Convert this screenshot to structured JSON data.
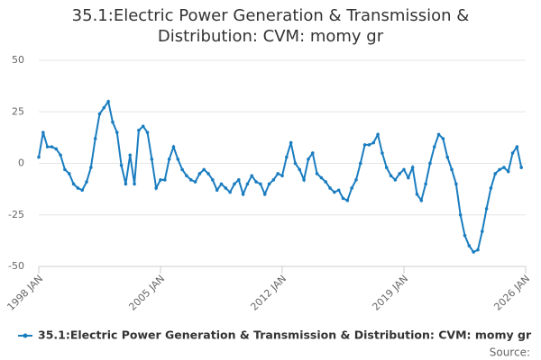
{
  "chart_data": {
    "type": "line",
    "title": "35.1:Electric Power Generation & Transmission & Distribution: CVM: momy gr",
    "source": "Source:",
    "x": [
      "1998 JAN",
      "1998 APR",
      "1998 JUL",
      "1998 OCT",
      "1999 JAN",
      "1999 APR",
      "1999 JUL",
      "1999 OCT",
      "2000 JAN",
      "2000 APR",
      "2000 JUL",
      "2000 OCT",
      "2001 JAN",
      "2001 APR",
      "2001 JUL",
      "2001 OCT",
      "2002 JAN",
      "2002 APR",
      "2002 JUL",
      "2002 OCT",
      "2003 JAN",
      "2003 APR",
      "2003 JUL",
      "2003 OCT",
      "2004 JAN",
      "2004 APR",
      "2004 JUL",
      "2004 OCT",
      "2005 JAN",
      "2005 APR",
      "2005 JUL",
      "2005 OCT",
      "2006 JAN",
      "2006 APR",
      "2006 JUL",
      "2006 OCT",
      "2007 JAN",
      "2007 APR",
      "2007 JUL",
      "2007 OCT",
      "2008 JAN",
      "2008 APR",
      "2008 JUL",
      "2008 OCT",
      "2009 JAN",
      "2009 APR",
      "2009 JUL",
      "2009 OCT",
      "2010 JAN",
      "2010 APR",
      "2010 JUL",
      "2010 OCT",
      "2011 JAN",
      "2011 APR",
      "2011 JUL",
      "2011 OCT",
      "2012 JAN",
      "2012 APR",
      "2012 JUL",
      "2012 OCT",
      "2013 JAN",
      "2013 APR",
      "2013 JUL",
      "2013 OCT",
      "2014 JAN",
      "2014 APR",
      "2014 JUL",
      "2014 OCT",
      "2015 JAN",
      "2015 APR",
      "2015 JUL",
      "2015 OCT",
      "2016 JAN",
      "2016 APR",
      "2016 JUL",
      "2016 OCT",
      "2017 JAN",
      "2017 APR",
      "2017 JUL",
      "2017 OCT",
      "2018 JAN",
      "2018 APR",
      "2018 JUL",
      "2018 OCT",
      "2019 JAN",
      "2019 APR",
      "2019 JUL",
      "2019 OCT",
      "2020 JAN",
      "2020 APR",
      "2020 JUL",
      "2020 OCT",
      "2021 JAN",
      "2021 APR",
      "2021 JUL",
      "2021 OCT",
      "2022 JAN",
      "2022 APR",
      "2022 JUL",
      "2022 OCT",
      "2023 JAN",
      "2023 APR",
      "2023 JUL",
      "2023 OCT",
      "2024 JAN",
      "2024 APR",
      "2024 JUL",
      "2024 OCT",
      "2025 JAN",
      "2025 APR",
      "2025 JUL",
      "2025 OCT"
    ],
    "series": [
      {
        "name": "35.1:Electric Power Generation & Transmission & Distribution: CVM: momy gr",
        "color": "#1a7dc0",
        "values": [
          3,
          15,
          8,
          8,
          7,
          4,
          -3,
          -5,
          -10,
          -12,
          -13,
          -9,
          -2,
          12,
          24,
          27,
          30,
          20,
          15,
          -1,
          -10,
          4,
          -10,
          16,
          18,
          15,
          2,
          -12,
          -8,
          -8,
          2,
          8,
          2,
          -3,
          -6,
          -8,
          -9,
          -5,
          -3,
          -5,
          -8,
          -13,
          -10,
          -12,
          -14,
          -10,
          -8,
          -15,
          -10,
          -6,
          -9,
          -10,
          -15,
          -10,
          -8,
          -5,
          -6,
          3,
          10,
          0,
          -3,
          -8,
          2,
          5,
          -5,
          -7,
          -9,
          -12,
          -14,
          -13,
          -17,
          -18,
          -12,
          -8,
          0,
          9,
          9,
          10,
          14,
          5,
          -2,
          -6,
          -8,
          -5,
          -3,
          -7,
          -2,
          -15,
          -18,
          -10,
          0,
          8,
          14,
          12,
          3,
          -3,
          -10,
          -25,
          -35,
          -40,
          -43,
          -42,
          -33,
          -22,
          -12,
          -5,
          -3,
          -2,
          -4,
          5,
          8,
          -2
        ]
      }
    ],
    "xlim": [
      "1998 JAN",
      "2026 JAN"
    ],
    "xticks": [
      "1998 JAN",
      "2005 JAN",
      "2012 JAN",
      "2019 JAN",
      "2026 JAN"
    ],
    "ylim": [
      -50,
      50
    ],
    "yticks": [
      -50,
      -25,
      0,
      25,
      50
    ],
    "grid": true
  }
}
